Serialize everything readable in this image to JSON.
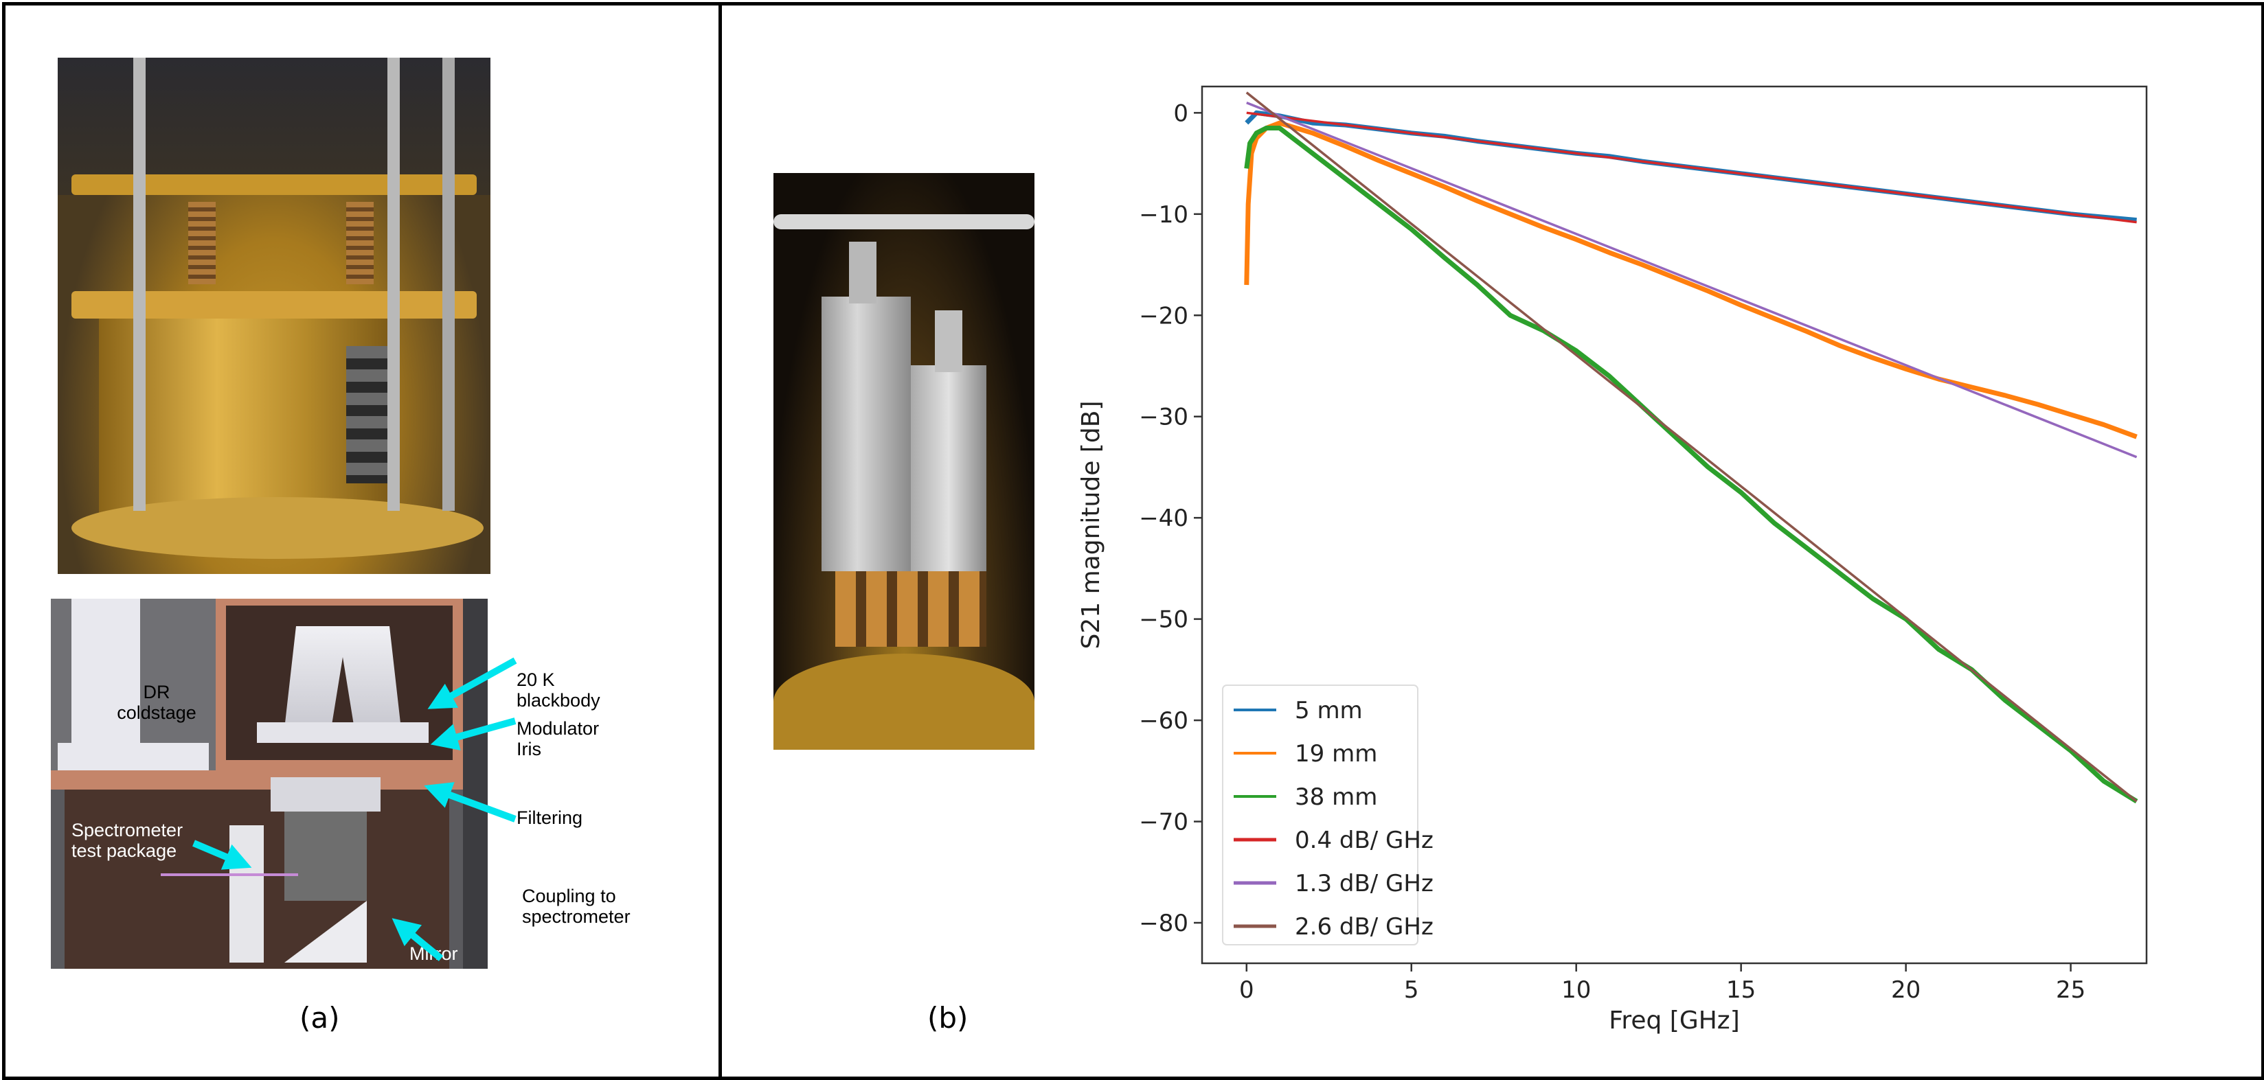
{
  "panels": {
    "a_label": "(a)",
    "b_label": "(b)"
  },
  "diagram": {
    "labels": {
      "blackbody": [
        "20 K",
        "blackbody"
      ],
      "modulator": [
        "Modulator",
        "Iris"
      ],
      "filtering": "Filtering",
      "coupling": [
        "Coupling to",
        "spectrometer"
      ],
      "coldstage": [
        "DR",
        "coldstage"
      ],
      "test_package": [
        "Spectrometer",
        "test package"
      ],
      "mirror": "Mirror"
    },
    "arrow_color": "#00e5ee"
  },
  "chart_data": {
    "type": "line",
    "title": "",
    "xlabel": "Freq [GHz]",
    "ylabel": "S21 magnitude [dB]",
    "xlim": [
      -1.35,
      27.3
    ],
    "ylim": [
      -84,
      2.6
    ],
    "xticks": [
      0,
      5,
      10,
      15,
      20,
      25
    ],
    "yticks": [
      0,
      -10,
      -20,
      -30,
      -40,
      -50,
      -60,
      -70,
      -80
    ],
    "xtick_labels": [
      "0",
      "5",
      "10",
      "15",
      "20",
      "25"
    ],
    "ytick_labels": [
      "0",
      "−10",
      "−20",
      "−30",
      "−40",
      "−50",
      "−60",
      "−70",
      "−80"
    ],
    "grid": false,
    "legend_position": "lower-left",
    "series": [
      {
        "name": "5 mm",
        "color": "#1f77b4",
        "kind": "measured",
        "x": [
          0,
          0.3,
          1,
          2,
          3,
          4,
          5,
          6,
          7,
          8,
          9,
          10,
          11,
          12,
          13,
          14,
          15,
          16,
          17,
          18,
          19,
          20,
          21,
          22,
          23,
          24,
          25,
          26,
          27
        ],
        "y": [
          -1,
          0,
          -0.3,
          -1,
          -1.2,
          -1.6,
          -2,
          -2.3,
          -2.8,
          -3.2,
          -3.6,
          -4,
          -4.3,
          -4.8,
          -5.2,
          -5.6,
          -6,
          -6.4,
          -6.8,
          -7.2,
          -7.6,
          -8,
          -8.4,
          -8.8,
          -9.2,
          -9.6,
          -10,
          -10.3,
          -10.6
        ]
      },
      {
        "name": "19 mm",
        "color": "#ff7f0e",
        "kind": "measured",
        "x": [
          0,
          0.05,
          0.15,
          0.3,
          0.6,
          1,
          2,
          3,
          4,
          5,
          6,
          7,
          8,
          9,
          10,
          11,
          12,
          13,
          14,
          15,
          16,
          17,
          18,
          19,
          20,
          21,
          22,
          23,
          24,
          25,
          26,
          27
        ],
        "y": [
          -17,
          -9,
          -4,
          -2.5,
          -1.5,
          -1,
          -2,
          -3.3,
          -4.7,
          -6,
          -7.3,
          -8.7,
          -10,
          -11.3,
          -12.5,
          -13.8,
          -15,
          -16.3,
          -17.6,
          -19,
          -20.3,
          -21.6,
          -23,
          -24.2,
          -25.3,
          -26.3,
          -27.1,
          -27.9,
          -28.8,
          -29.8,
          -30.8,
          -32
        ]
      },
      {
        "name": "38 mm",
        "color": "#2ca02c",
        "kind": "measured",
        "x": [
          0,
          0.1,
          0.3,
          0.6,
          1,
          2,
          3,
          4,
          5,
          6,
          7,
          8,
          9,
          10,
          11,
          12,
          13,
          14,
          15,
          16,
          17,
          18,
          19,
          20,
          21,
          22,
          23,
          24,
          25,
          26,
          27
        ],
        "y": [
          -5.5,
          -3,
          -2,
          -1.5,
          -1.5,
          -4,
          -6.5,
          -9,
          -11.5,
          -14.3,
          -17,
          -20,
          -21.5,
          -23.5,
          -26,
          -29,
          -32,
          -35,
          -37.5,
          -40.5,
          -43,
          -45.5,
          -48,
          -50,
          -53,
          -55,
          -58,
          -60.5,
          -63,
          -66,
          -68
        ]
      },
      {
        "name": "0.4 dB/ GHz",
        "color": "#d62728",
        "kind": "fit",
        "x": [
          0,
          27
        ],
        "y": [
          0,
          -10.8
        ]
      },
      {
        "name": "1.3 dB/ GHz",
        "color": "#9467bd",
        "kind": "fit",
        "x": [
          0,
          27
        ],
        "y": [
          1,
          -34
        ]
      },
      {
        "name": "2.6 dB/ GHz",
        "color": "#8c564b",
        "kind": "fit",
        "x": [
          0,
          27
        ],
        "y": [
          2,
          -68
        ]
      }
    ]
  }
}
